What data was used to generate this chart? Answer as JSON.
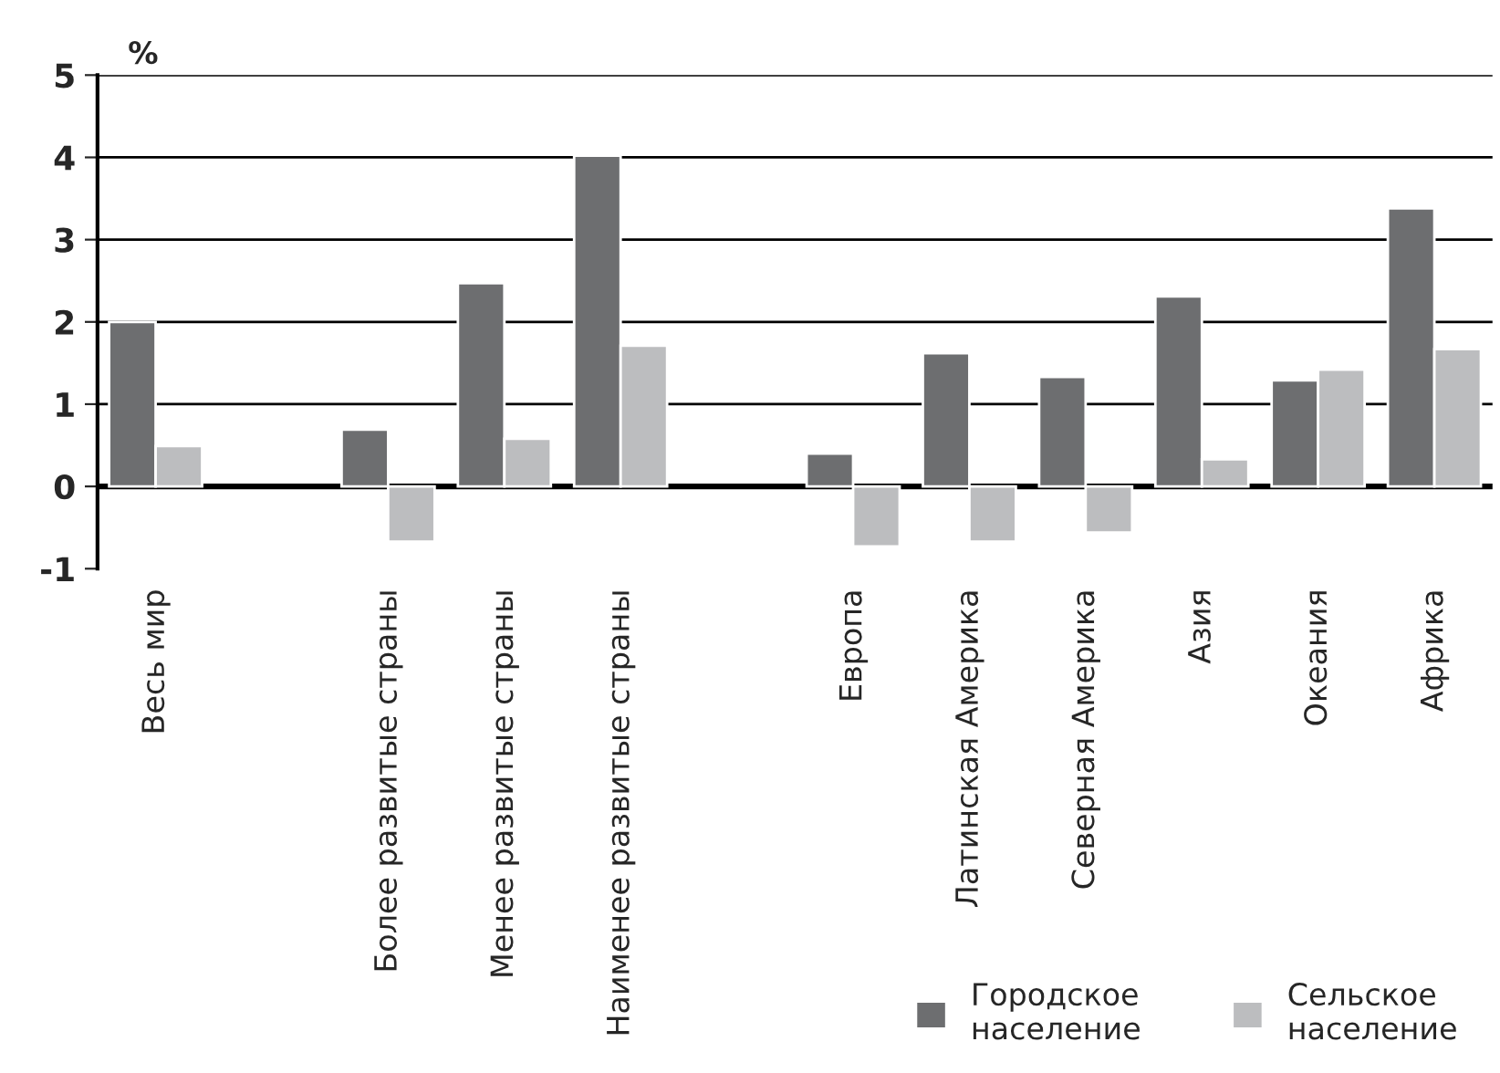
{
  "chart_data": {
    "type": "bar",
    "ylabel": "%",
    "categories": [
      "Весь мир",
      null,
      "Более развитые страны",
      "Менее развитые страны",
      "Наименее развитые страны",
      null,
      "Европа",
      "Латинская Америка",
      "Северная Америка",
      "Азия",
      "Океания",
      "Африка"
    ],
    "series": [
      {
        "name": "Городское\nнаселение",
        "color": "#6d6e70",
        "values": [
          2.0,
          null,
          0.69,
          2.47,
          4.02,
          null,
          0.4,
          1.62,
          1.33,
          2.31,
          1.29,
          3.38
        ]
      },
      {
        "name": "Сельское\nнаселение",
        "color": "#bcbdbf",
        "values": [
          0.49,
          null,
          -0.67,
          0.58,
          1.71,
          null,
          -0.73,
          -0.67,
          -0.56,
          0.33,
          1.42,
          1.67
        ]
      }
    ],
    "ylim": [
      -1,
      5
    ],
    "yticks": [
      -1,
      0,
      1,
      2,
      3,
      4,
      5
    ],
    "grid": "y",
    "legend": "bottom right"
  }
}
